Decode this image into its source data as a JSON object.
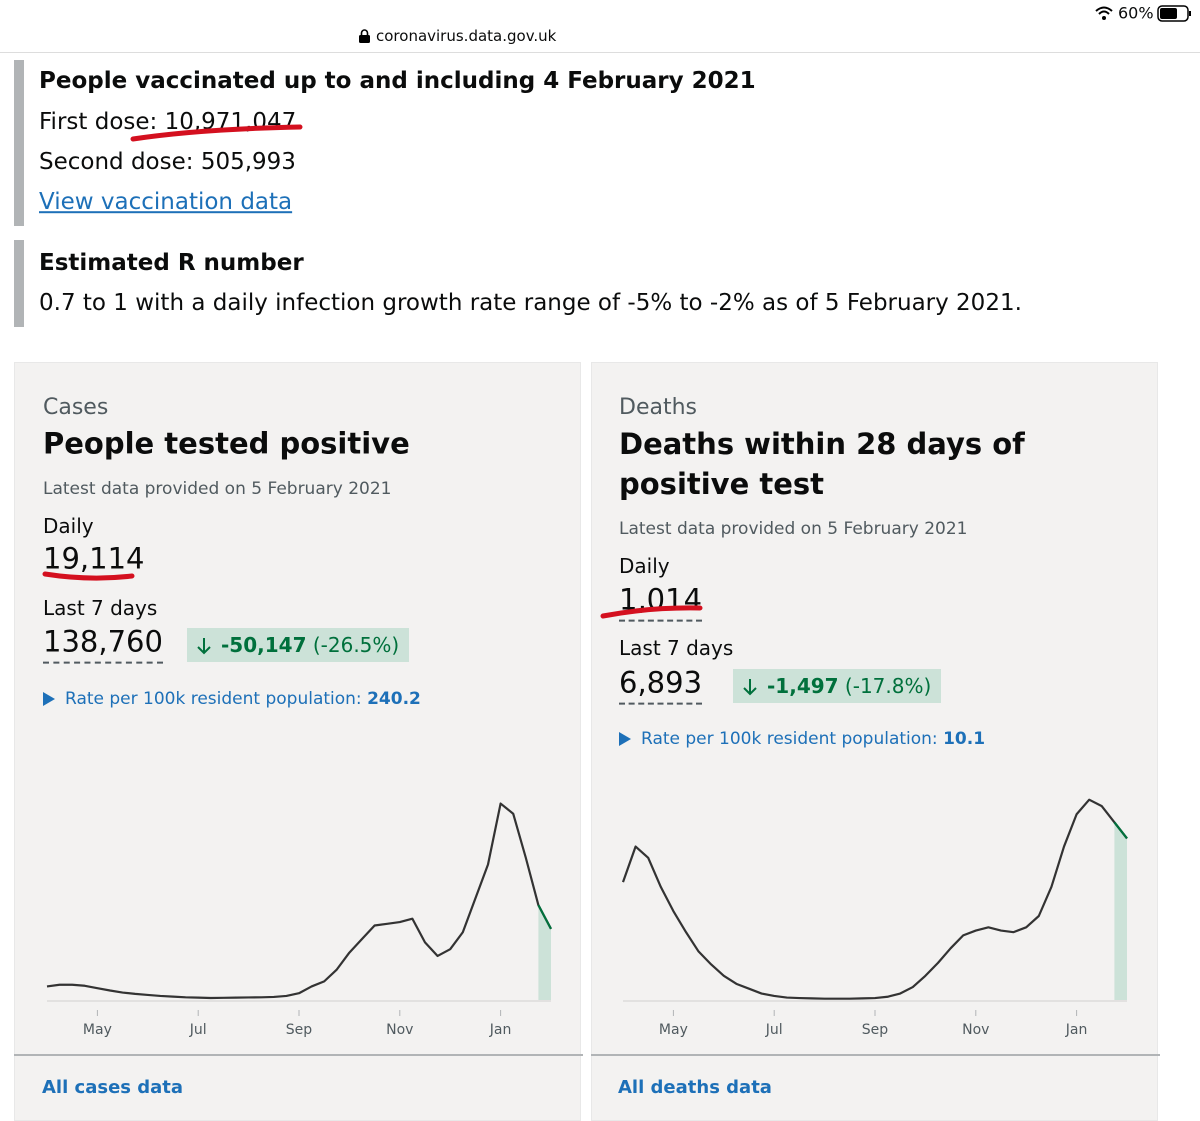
{
  "status_bar": {
    "battery": "60%",
    "url": "coronavirus.data.gov.uk"
  },
  "vaccinations": {
    "title": "People vaccinated up to and including 4 February 2021",
    "first_dose": "First dose: 10,971,047",
    "second_dose": "Second dose: 505,993",
    "link": "View vaccination data"
  },
  "r_number": {
    "title": "Estimated R number",
    "text": "0.7 to 1 with a daily infection growth rate range of -5% to -2% as of 5 February 2021."
  },
  "cards": [
    {
      "category": "Cases",
      "title": "People tested positive",
      "latest": "Latest data provided on 5 February 2021",
      "daily_label": "Daily",
      "daily": "19,114",
      "last7_label": "Last 7 days",
      "last7": "138,760",
      "change": "-50,147",
      "change_pct": "(-26.5%)",
      "rate_label": "Rate per 100k resident population:",
      "rate": "240.2",
      "link": "All cases data",
      "chart_data": {
        "type": "line",
        "categories": [
          null,
          null,
          null,
          null,
          "May",
          null,
          null,
          null,
          null,
          null,
          null,
          null,
          "Jul",
          null,
          null,
          null,
          null,
          null,
          null,
          null,
          "Sep",
          null,
          null,
          null,
          null,
          null,
          null,
          null,
          "Nov",
          null,
          null,
          null,
          null,
          null,
          null,
          null,
          "Jan",
          null,
          null,
          null,
          null
        ],
        "series": [
          {
            "color": "#333333",
            "values": [
              4000,
              4500,
              4500,
              4200,
              3500,
              2800,
              2200,
              1800,
              1500,
              1200,
              1000,
              800,
              700,
              600,
              650,
              700,
              750,
              800,
              900,
              1200,
              2000,
              4000,
              5500,
              9000,
              14000,
              18000,
              22000,
              22500,
              23000,
              24000,
              17000,
              13000,
              15000,
              20000,
              30000,
              40000,
              58000,
              55000,
              42000,
              28000,
              21000
            ]
          }
        ],
        "ylim": [
          0,
          62000
        ]
      }
    },
    {
      "category": "Deaths",
      "title": "Deaths within 28 days of positive test",
      "latest": "Latest data provided on 5 February 2021",
      "daily_label": "Daily",
      "daily": "1,014",
      "last7_label": "Last 7 days",
      "last7": "6,893",
      "change": "-1,497",
      "change_pct": "(-17.8%)",
      "rate_label": "Rate per 100k resident population:",
      "rate": "10.1",
      "link": "All deaths data",
      "chart_data": {
        "type": "line",
        "categories": [
          null,
          null,
          null,
          null,
          "May",
          null,
          null,
          null,
          null,
          null,
          null,
          null,
          "Jul",
          null,
          null,
          null,
          null,
          null,
          null,
          null,
          "Sep",
          null,
          null,
          null,
          null,
          null,
          null,
          null,
          "Nov",
          null,
          null,
          null,
          null,
          null,
          null,
          null,
          "Jan",
          null,
          null,
          null,
          null
        ],
        "series": [
          {
            "color": "#333333",
            "values": [
              730,
              950,
              880,
              700,
              550,
              420,
              300,
              220,
              150,
              100,
              70,
              40,
              25,
              15,
              12,
              10,
              8,
              8,
              8,
              10,
              12,
              20,
              40,
              80,
              150,
              230,
              320,
              400,
              430,
              450,
              430,
              420,
              450,
              520,
              700,
              950,
              1150,
              1240,
              1200,
              1100,
              1000
            ]
          }
        ],
        "ylim": [
          0,
          1300
        ]
      }
    }
  ]
}
